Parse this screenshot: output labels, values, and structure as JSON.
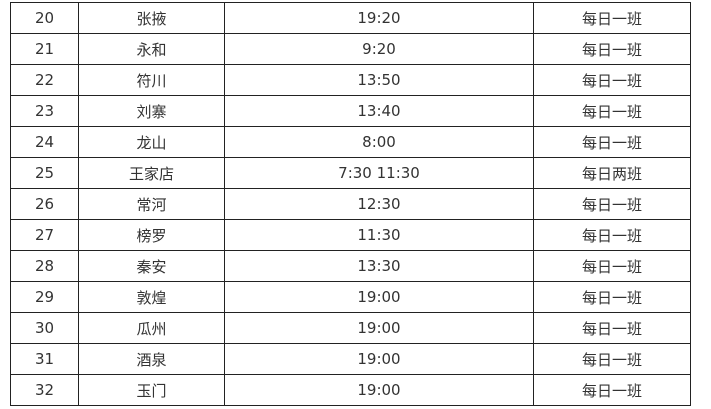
{
  "rows": [
    {
      "no": "20",
      "station": "张掖",
      "time": "19:20",
      "frequency": "每日一班"
    },
    {
      "no": "21",
      "station": "永和",
      "time": "9:20",
      "frequency": "每日一班"
    },
    {
      "no": "22",
      "station": "符川",
      "time": "13:50",
      "frequency": "每日一班"
    },
    {
      "no": "23",
      "station": "刘寨",
      "time": "13:40",
      "frequency": "每日一班"
    },
    {
      "no": "24",
      "station": "龙山",
      "time": "8:00",
      "frequency": "每日一班"
    },
    {
      "no": "25",
      "station": "王家店",
      "time": "7:30  11:30",
      "frequency": "每日两班"
    },
    {
      "no": "26",
      "station": "常河",
      "time": "12:30",
      "frequency": "每日一班"
    },
    {
      "no": "27",
      "station": "榜罗",
      "time": "11:30",
      "frequency": "每日一班"
    },
    {
      "no": "28",
      "station": "秦安",
      "time": "13:30",
      "frequency": "每日一班"
    },
    {
      "no": "29",
      "station": "敦煌",
      "time": "19:00",
      "frequency": "每日一班"
    },
    {
      "no": "30",
      "station": "瓜州",
      "time": "19:00",
      "frequency": "每日一班"
    },
    {
      "no": "31",
      "station": "酒泉",
      "time": "19:00",
      "frequency": "每日一班"
    },
    {
      "no": "32",
      "station": "玉门",
      "time": "19:00",
      "frequency": "每日一班"
    }
  ]
}
